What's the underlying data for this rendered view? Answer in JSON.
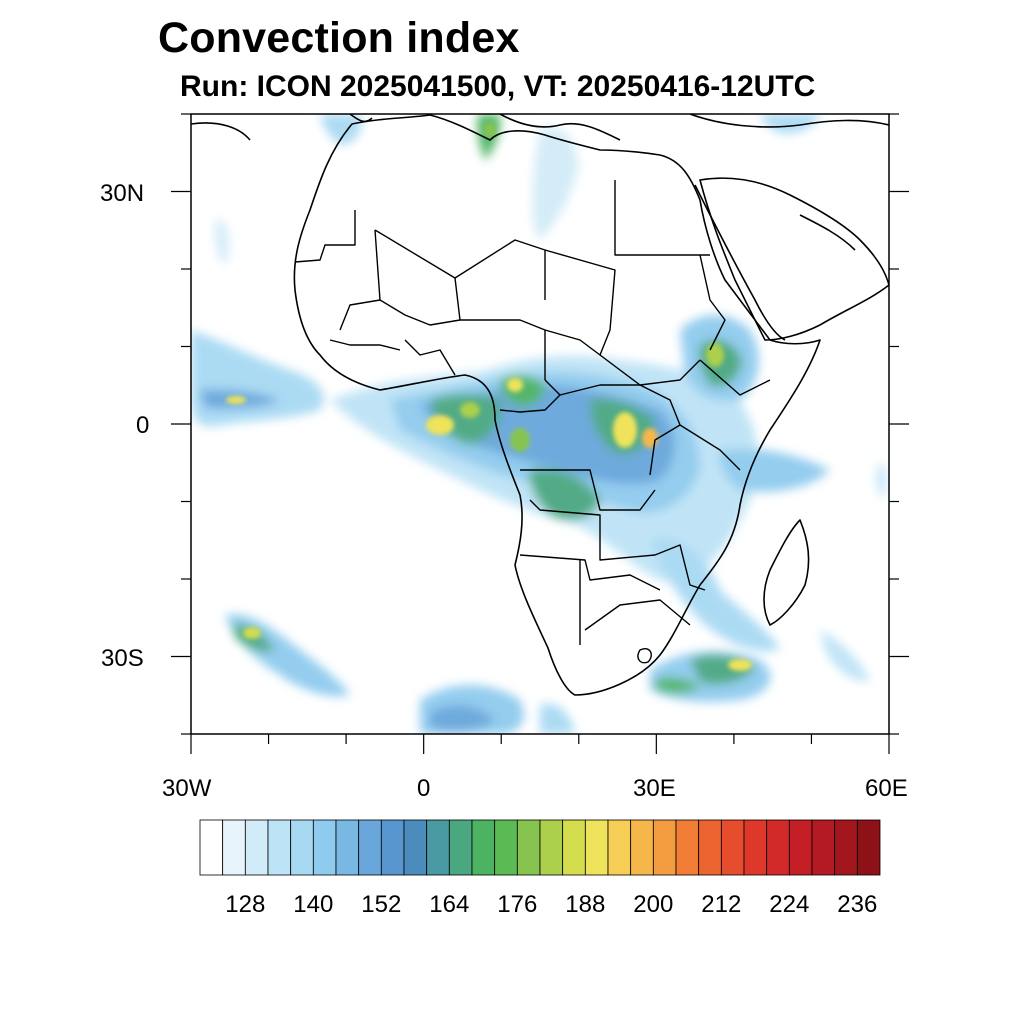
{
  "figure": {
    "title": "Convection index",
    "subtitle": "Run: ICON 2025041500,  VT: 20250416-12UTC"
  },
  "map": {
    "projection": "cylindrical equidistant",
    "lon_range": [
      -30,
      60
    ],
    "lat_range": [
      -40,
      40
    ],
    "lon_labels": [
      "30W",
      "0",
      "30E",
      "60E"
    ],
    "lat_labels": [
      "30N",
      "0",
      "30S"
    ],
    "field": "convection index"
  },
  "colorbar": {
    "levels": [
      120,
      124,
      128,
      132,
      136,
      140,
      144,
      148,
      152,
      156,
      160,
      164,
      168,
      172,
      176,
      180,
      184,
      188,
      192,
      196,
      200,
      204,
      208,
      212,
      216,
      220,
      224,
      228,
      232,
      236,
      240
    ],
    "labels": [
      "128",
      "140",
      "152",
      "164",
      "176",
      "188",
      "200",
      "212",
      "224",
      "236"
    ],
    "colors": [
      "#ffffff",
      "#e8f4fb",
      "#d2ebf8",
      "#bde3f6",
      "#a7d9f3",
      "#8fcbee",
      "#7ab8e4",
      "#68a6dc",
      "#5896cf",
      "#4b8cbc",
      "#4a9aa3",
      "#4aa780",
      "#4bb362",
      "#5cba55",
      "#86c44f",
      "#acd04c",
      "#d3dd4e",
      "#eee35a",
      "#f6ce55",
      "#f6b74a",
      "#f49c40",
      "#f17d36",
      "#ec6530",
      "#e54d2c",
      "#dd382a",
      "#d22a29",
      "#c41f27",
      "#b41a23",
      "#a3161e",
      "#8c1218"
    ]
  }
}
